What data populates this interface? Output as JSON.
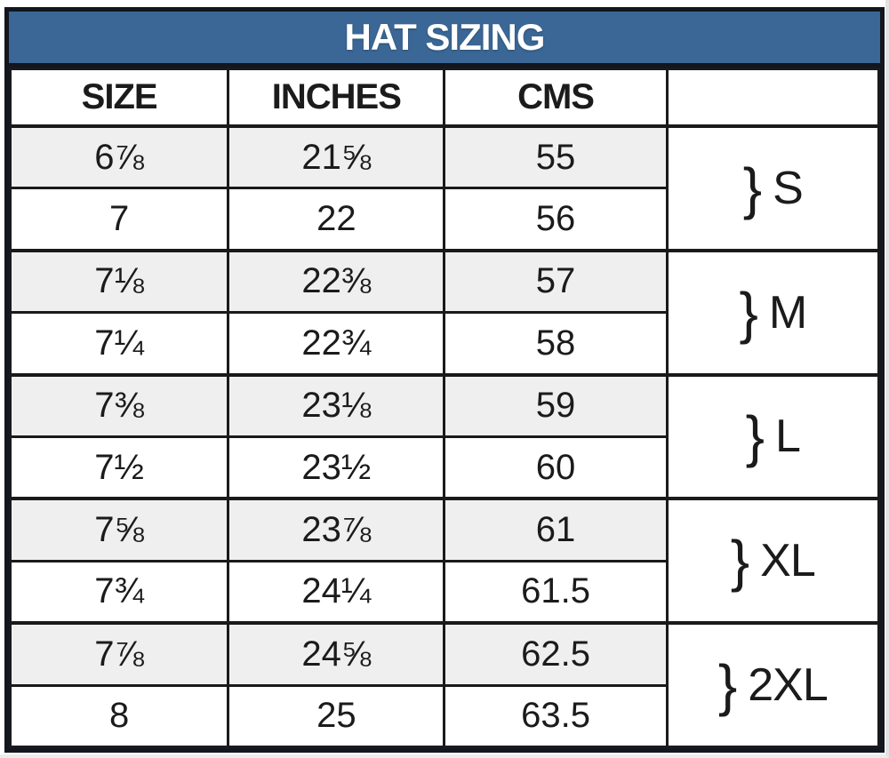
{
  "title": "HAT SIZING",
  "table": {
    "columns": [
      "SIZE",
      "INCHES",
      "CMS",
      ""
    ],
    "brace": "}",
    "groups": [
      {
        "label": "S",
        "rows": [
          [
            "6⅞",
            "21⅝",
            "55"
          ],
          [
            "7",
            "22",
            "56"
          ]
        ]
      },
      {
        "label": "M",
        "rows": [
          [
            "7⅛",
            "22⅜",
            "57"
          ],
          [
            "7¼",
            "22¾",
            "58"
          ]
        ]
      },
      {
        "label": "L",
        "rows": [
          [
            "7⅜",
            "23⅛",
            "59"
          ],
          [
            "7½",
            "23½",
            "60"
          ]
        ]
      },
      {
        "label": "XL",
        "rows": [
          [
            "7⅝",
            "23⅞",
            "61"
          ],
          [
            "7¾",
            "24¼",
            "61.5"
          ]
        ]
      },
      {
        "label": "2XL",
        "rows": [
          [
            "7⅞",
            "24⅝",
            "62.5"
          ],
          [
            "8",
            "25",
            "63.5"
          ]
        ]
      }
    ]
  },
  "colors": {
    "title_background": "#3A6795",
    "title_text": "#FFFFFF",
    "border": "#1A1A1A",
    "outer_border": "#12161E",
    "stripe_row": "#EFEFEF",
    "plain_row": "#FFFFFF",
    "cell_text": "#1B1B1B"
  },
  "chart_data": {
    "type": "table",
    "title": "HAT SIZING",
    "columns": [
      "SIZE",
      "INCHES",
      "CMS",
      ""
    ],
    "rows": [
      [
        "6⅞",
        "21⅝",
        "55"
      ],
      [
        "7",
        "22",
        "56"
      ],
      [
        "7⅛",
        "22⅜",
        "57"
      ],
      [
        "7¼",
        "22¾",
        "58"
      ],
      [
        "7⅜",
        "23⅛",
        "59"
      ],
      [
        "7½",
        "23½",
        "60"
      ],
      [
        "7⅝",
        "23⅞",
        "61"
      ],
      [
        "7¾",
        "24¼",
        "61.5"
      ],
      [
        "7⅞",
        "24⅝",
        "62.5"
      ],
      [
        "8",
        "25",
        "63.5"
      ]
    ],
    "size_groups": [
      {
        "label": "S",
        "row_indices": [
          0,
          1
        ]
      },
      {
        "label": "M",
        "row_indices": [
          2,
          3
        ]
      },
      {
        "label": "L",
        "row_indices": [
          4,
          5
        ]
      },
      {
        "label": "XL",
        "row_indices": [
          6,
          7
        ]
      },
      {
        "label": "2XL",
        "row_indices": [
          8,
          9
        ]
      }
    ],
    "layout": {
      "row_striping": "first row of each group shaded gray",
      "grid": true
    }
  }
}
